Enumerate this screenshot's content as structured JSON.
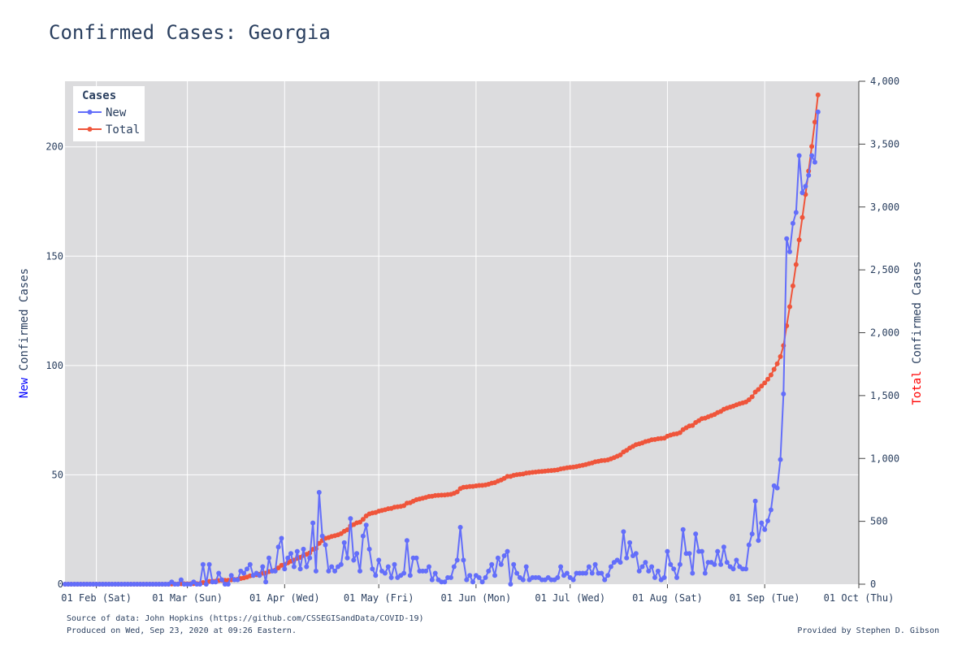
{
  "page": {
    "title": "Confirmed Cases: Georgia"
  },
  "footer": {
    "source": "Source of data: John Hopkins (https://github.com/CSSEGISandData/COVID-19)",
    "produced": "Produced on Wed, Sep 23, 2020 at 09:26 Eastern.",
    "provided_by": "Provided by Stephen D. Gibson"
  },
  "chart_data": {
    "type": "line",
    "title": "Confirmed Cases: Georgia",
    "x_range": [
      "2020-01-22",
      "2020-10-01"
    ],
    "x_ticks": [
      {
        "date": "2020-02-01",
        "label": "01 Feb (Sat)"
      },
      {
        "date": "2020-03-01",
        "label": "01 Mar (Sun)"
      },
      {
        "date": "2020-04-01",
        "label": "01 Apr (Wed)"
      },
      {
        "date": "2020-05-01",
        "label": "01 May (Fri)"
      },
      {
        "date": "2020-06-01",
        "label": "01 Jun (Mon)"
      },
      {
        "date": "2020-07-01",
        "label": "01 Jul (Wed)"
      },
      {
        "date": "2020-08-01",
        "label": "01 Aug (Sat)"
      },
      {
        "date": "2020-09-01",
        "label": "01 Sep (Tue)"
      },
      {
        "date": "2020-10-01",
        "label": "01 Oct (Thu)"
      }
    ],
    "y_left": {
      "label_prefix": "New",
      "label_rest": " Confirmed Cases",
      "prefix_color": "#0000ff",
      "range": [
        0,
        230
      ],
      "ticks": [
        0,
        50,
        100,
        150,
        200
      ],
      "tick_labels": [
        "0",
        "50",
        "100",
        "150",
        "200"
      ]
    },
    "y_right": {
      "label_prefix": "Total",
      "label_rest": " Confirmed Cases",
      "prefix_color": "#ff0000",
      "range": [
        0,
        4000
      ],
      "ticks": [
        0,
        500,
        1000,
        1500,
        2000,
        2500,
        3000,
        3500,
        4000
      ],
      "tick_labels": [
        "0",
        "500",
        "1,000",
        "1,500",
        "2,000",
        "2,500",
        "3,000",
        "3,500",
        "4,000"
      ]
    },
    "legend": {
      "title": "Cases",
      "placement": "top-left"
    },
    "grid": true,
    "start_date": "2020-01-22",
    "series": [
      {
        "name": "New",
        "axis": "left",
        "color": "#636efa",
        "keypoints": [
          [
            "2020-01-22",
            0
          ],
          [
            "2020-02-24",
            0
          ],
          [
            "2020-02-25",
            1
          ],
          [
            "2020-02-26",
            0
          ],
          [
            "2020-02-27",
            0
          ],
          [
            "2020-02-28",
            2
          ],
          [
            "2020-02-29",
            0
          ],
          [
            "2020-03-01",
            0
          ],
          [
            "2020-03-02",
            0
          ],
          [
            "2020-03-03",
            1
          ],
          [
            "2020-03-04",
            0
          ],
          [
            "2020-03-05",
            0
          ],
          [
            "2020-03-06",
            9
          ],
          [
            "2020-03-07",
            0
          ],
          [
            "2020-03-08",
            9
          ],
          [
            "2020-03-09",
            1
          ],
          [
            "2020-03-10",
            1
          ],
          [
            "2020-03-11",
            5
          ],
          [
            "2020-03-12",
            2
          ],
          [
            "2020-03-13",
            0
          ],
          [
            "2020-03-14",
            0
          ],
          [
            "2020-03-15",
            4
          ],
          [
            "2020-03-16",
            2
          ],
          [
            "2020-03-17",
            2
          ],
          [
            "2020-03-18",
            6
          ],
          [
            "2020-03-19",
            5
          ],
          [
            "2020-03-20",
            7
          ],
          [
            "2020-03-21",
            9
          ],
          [
            "2020-03-22",
            4
          ],
          [
            "2020-03-23",
            5
          ],
          [
            "2020-03-24",
            4
          ],
          [
            "2020-03-25",
            8
          ],
          [
            "2020-03-26",
            1
          ],
          [
            "2020-03-27",
            12
          ],
          [
            "2020-03-28",
            6
          ],
          [
            "2020-03-29",
            6
          ],
          [
            "2020-03-30",
            17
          ],
          [
            "2020-03-31",
            21
          ],
          [
            "2020-04-01",
            7
          ],
          [
            "2020-04-02",
            12
          ],
          [
            "2020-04-03",
            14
          ],
          [
            "2020-04-04",
            8
          ],
          [
            "2020-04-05",
            15
          ],
          [
            "2020-04-06",
            7
          ],
          [
            "2020-04-07",
            16
          ],
          [
            "2020-04-08",
            8
          ],
          [
            "2020-04-09",
            12
          ],
          [
            "2020-04-10",
            28
          ],
          [
            "2020-04-11",
            6
          ],
          [
            "2020-04-12",
            42
          ],
          [
            "2020-04-13",
            22
          ],
          [
            "2020-04-14",
            18
          ],
          [
            "2020-04-15",
            6
          ],
          [
            "2020-04-16",
            8
          ],
          [
            "2020-04-17",
            6
          ],
          [
            "2020-04-18",
            8
          ],
          [
            "2020-04-19",
            9
          ],
          [
            "2020-04-20",
            19
          ],
          [
            "2020-04-21",
            12
          ],
          [
            "2020-04-22",
            30
          ],
          [
            "2020-04-23",
            11
          ],
          [
            "2020-04-24",
            14
          ],
          [
            "2020-04-25",
            6
          ],
          [
            "2020-04-26",
            22
          ],
          [
            "2020-04-27",
            27
          ],
          [
            "2020-04-28",
            16
          ],
          [
            "2020-04-29",
            7
          ],
          [
            "2020-04-30",
            4
          ],
          [
            "2020-05-01",
            11
          ],
          [
            "2020-05-02",
            6
          ],
          [
            "2020-05-03",
            5
          ],
          [
            "2020-05-04",
            8
          ],
          [
            "2020-05-05",
            3
          ],
          [
            "2020-05-06",
            9
          ],
          [
            "2020-05-07",
            3
          ],
          [
            "2020-05-08",
            4
          ],
          [
            "2020-05-09",
            5
          ],
          [
            "2020-05-10",
            20
          ],
          [
            "2020-05-11",
            4
          ],
          [
            "2020-05-12",
            12
          ],
          [
            "2020-05-13",
            12
          ],
          [
            "2020-05-14",
            6
          ],
          [
            "2020-05-15",
            6
          ],
          [
            "2020-05-16",
            6
          ],
          [
            "2020-05-17",
            8
          ],
          [
            "2020-05-18",
            2
          ],
          [
            "2020-05-19",
            5
          ],
          [
            "2020-05-20",
            2
          ],
          [
            "2020-05-21",
            1
          ],
          [
            "2020-05-22",
            1
          ],
          [
            "2020-05-23",
            3
          ],
          [
            "2020-05-24",
            3
          ],
          [
            "2020-05-25",
            8
          ],
          [
            "2020-05-26",
            11
          ],
          [
            "2020-05-27",
            26
          ],
          [
            "2020-05-28",
            11
          ],
          [
            "2020-05-29",
            2
          ],
          [
            "2020-05-30",
            4
          ],
          [
            "2020-05-31",
            1
          ],
          [
            "2020-06-01",
            4
          ],
          [
            "2020-06-02",
            3
          ],
          [
            "2020-06-03",
            1
          ],
          [
            "2020-06-04",
            3
          ],
          [
            "2020-06-05",
            6
          ],
          [
            "2020-06-06",
            9
          ],
          [
            "2020-06-07",
            4
          ],
          [
            "2020-06-08",
            12
          ],
          [
            "2020-06-09",
            9
          ],
          [
            "2020-06-10",
            13
          ],
          [
            "2020-06-11",
            15
          ],
          [
            "2020-06-12",
            0
          ],
          [
            "2020-06-13",
            9
          ],
          [
            "2020-06-14",
            5
          ],
          [
            "2020-06-15",
            3
          ],
          [
            "2020-06-16",
            2
          ],
          [
            "2020-06-17",
            8
          ],
          [
            "2020-06-18",
            2
          ],
          [
            "2020-06-19",
            3
          ],
          [
            "2020-06-20",
            3
          ],
          [
            "2020-06-21",
            3
          ],
          [
            "2020-06-22",
            2
          ],
          [
            "2020-06-23",
            2
          ],
          [
            "2020-06-24",
            3
          ],
          [
            "2020-06-25",
            2
          ],
          [
            "2020-06-26",
            2
          ],
          [
            "2020-06-27",
            3
          ],
          [
            "2020-06-28",
            8
          ],
          [
            "2020-06-29",
            4
          ],
          [
            "2020-06-30",
            5
          ],
          [
            "2020-07-01",
            3
          ],
          [
            "2020-07-02",
            2
          ],
          [
            "2020-07-03",
            5
          ],
          [
            "2020-07-04",
            5
          ],
          [
            "2020-07-05",
            5
          ],
          [
            "2020-07-06",
            5
          ],
          [
            "2020-07-07",
            8
          ],
          [
            "2020-07-08",
            5
          ],
          [
            "2020-07-09",
            9
          ],
          [
            "2020-07-10",
            5
          ],
          [
            "2020-07-11",
            5
          ],
          [
            "2020-07-12",
            2
          ],
          [
            "2020-07-13",
            4
          ],
          [
            "2020-07-14",
            8
          ],
          [
            "2020-07-15",
            10
          ],
          [
            "2020-07-16",
            11
          ],
          [
            "2020-07-17",
            10
          ],
          [
            "2020-07-18",
            24
          ],
          [
            "2020-07-19",
            12
          ],
          [
            "2020-07-20",
            19
          ],
          [
            "2020-07-21",
            13
          ],
          [
            "2020-07-22",
            14
          ],
          [
            "2020-07-23",
            6
          ],
          [
            "2020-07-24",
            8
          ],
          [
            "2020-07-25",
            10
          ],
          [
            "2020-07-26",
            6
          ],
          [
            "2020-07-27",
            8
          ],
          [
            "2020-07-28",
            3
          ],
          [
            "2020-07-29",
            6
          ],
          [
            "2020-07-30",
            2
          ],
          [
            "2020-07-31",
            3
          ],
          [
            "2020-08-01",
            15
          ],
          [
            "2020-08-02",
            9
          ],
          [
            "2020-08-03",
            7
          ],
          [
            "2020-08-04",
            3
          ],
          [
            "2020-08-05",
            9
          ],
          [
            "2020-08-06",
            25
          ],
          [
            "2020-08-07",
            14
          ],
          [
            "2020-08-08",
            14
          ],
          [
            "2020-08-09",
            5
          ],
          [
            "2020-08-10",
            23
          ],
          [
            "2020-08-11",
            15
          ],
          [
            "2020-08-12",
            15
          ],
          [
            "2020-08-13",
            5
          ],
          [
            "2020-08-14",
            10
          ],
          [
            "2020-08-15",
            10
          ],
          [
            "2020-08-16",
            9
          ],
          [
            "2020-08-17",
            15
          ],
          [
            "2020-08-18",
            9
          ],
          [
            "2020-08-19",
            17
          ],
          [
            "2020-08-20",
            10
          ],
          [
            "2020-08-21",
            8
          ],
          [
            "2020-08-22",
            7
          ],
          [
            "2020-08-23",
            11
          ],
          [
            "2020-08-24",
            8
          ],
          [
            "2020-08-25",
            7
          ],
          [
            "2020-08-26",
            7
          ],
          [
            "2020-08-27",
            18
          ],
          [
            "2020-08-28",
            23
          ],
          [
            "2020-08-29",
            38
          ],
          [
            "2020-08-30",
            20
          ],
          [
            "2020-08-31",
            28
          ],
          [
            "2020-09-01",
            25
          ],
          [
            "2020-09-02",
            29
          ],
          [
            "2020-09-03",
            34
          ],
          [
            "2020-09-04",
            45
          ],
          [
            "2020-09-05",
            44
          ],
          [
            "2020-09-06",
            57
          ],
          [
            "2020-09-07",
            87
          ],
          [
            "2020-09-08",
            158
          ],
          [
            "2020-09-09",
            152
          ],
          [
            "2020-09-10",
            165
          ],
          [
            "2020-09-11",
            170
          ],
          [
            "2020-09-12",
            196
          ],
          [
            "2020-09-13",
            179
          ],
          [
            "2020-09-14",
            182
          ],
          [
            "2020-09-15",
            187
          ],
          [
            "2020-09-16",
            196
          ],
          [
            "2020-09-17",
            193
          ],
          [
            "2020-09-18",
            216
          ]
        ]
      },
      {
        "name": "Total",
        "axis": "right",
        "color": "#ef553b"
      }
    ]
  }
}
